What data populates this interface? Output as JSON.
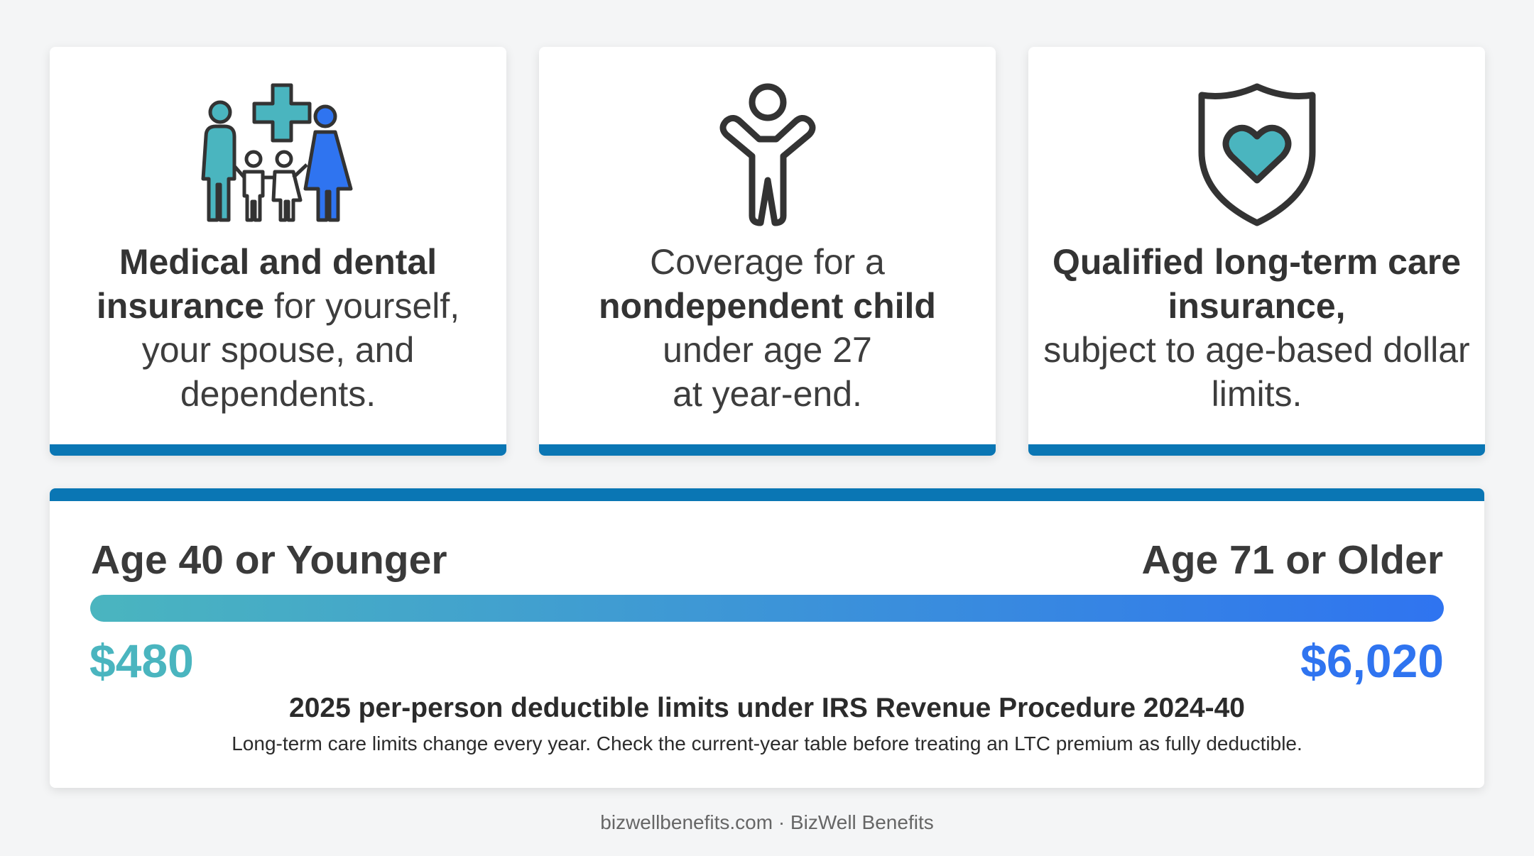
{
  "cards": [
    {
      "icon": "family-medical-icon",
      "bold1": "Medical and dental insurance",
      "rest1": " for yourself, your spouse, and dependents."
    },
    {
      "icon": "child-icon",
      "pre": "Coverage for a",
      "bold": "nondependent child",
      "line3": "under age 27",
      "line4": "at year-end."
    },
    {
      "icon": "shield-heart-icon",
      "bold": "Qualified long-term care insurance,",
      "rest": "subject to age-based dollar limits."
    }
  ],
  "range": {
    "left_label": "Age 40 or Younger",
    "right_label": "Age 71 or Older",
    "left_amount": "$480",
    "right_amount": "$6,020",
    "caption": "2025 per-person deductible limits under IRS Revenue Procedure 2024-40",
    "note": "Long-term care limits change every year. Check the current-year table before treating an LTC premium as fully deductible."
  },
  "footer": "bizwellbenefits.com · BizWell Benefits",
  "colors": {
    "accent_blue": "#0a76b4",
    "teal": "#4ab5bf",
    "bright_blue": "#2f74f0"
  }
}
